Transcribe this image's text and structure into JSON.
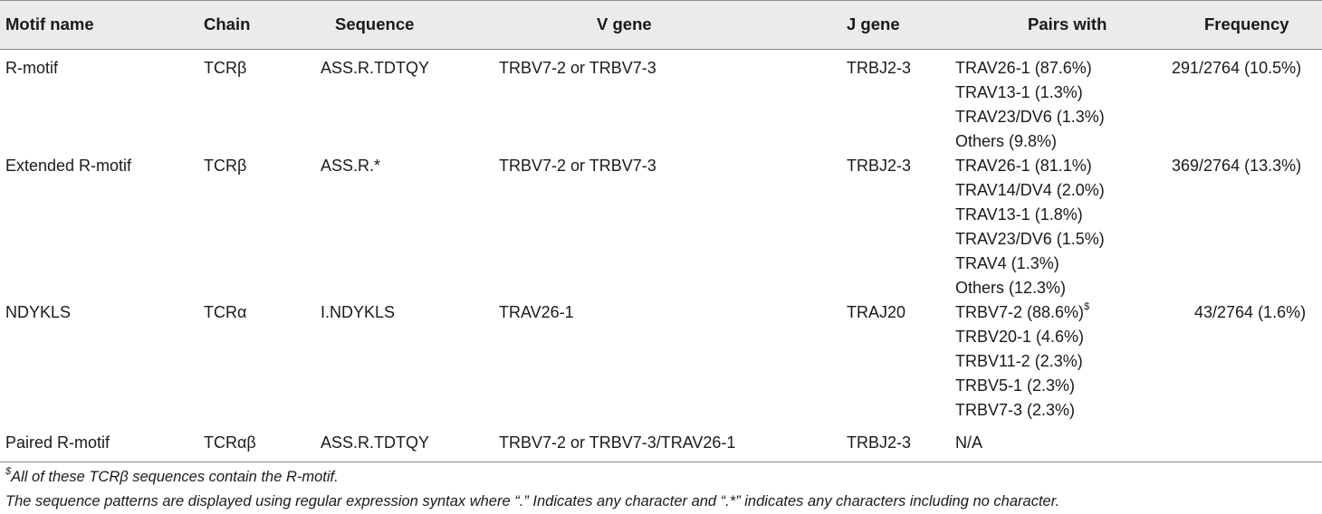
{
  "headers": {
    "motif": "Motif name",
    "chain": "Chain",
    "sequence": "Sequence",
    "vgene": "V gene",
    "jgene": "J gene",
    "pairs": "Pairs with",
    "freq": "Frequency"
  },
  "rows": [
    {
      "motif": "R-motif",
      "chain": "TCRβ",
      "sequence": "ASS.R.TDTQY",
      "vgene": "TRBV7-2 or TRBV7-3",
      "jgene": "TRBJ2-3",
      "pairs": [
        "TRAV26-1 (87.6%)",
        "TRAV13-1 (1.3%)",
        "TRAV23/DV6 (1.3%)",
        "Others (9.8%)"
      ],
      "freq": "291/2764 (10.5%)"
    },
    {
      "motif": "Extended R-motif",
      "chain": "TCRβ",
      "sequence": "ASS.R.*",
      "vgene": "TRBV7-2 or TRBV7-3",
      "jgene": "TRBJ2-3",
      "pairs": [
        "TRAV26-1 (81.1%)",
        "TRAV14/DV4 (2.0%)",
        "TRAV13-1 (1.8%)",
        "TRAV23/DV6 (1.5%)",
        "TRAV4 (1.3%)",
        "Others (12.3%)"
      ],
      "freq": "369/2764 (13.3%)"
    },
    {
      "motif": "NDYKLS",
      "chain": "TCRα",
      "sequence": "I.NDYKLS",
      "vgene": "TRAV26-1",
      "jgene": "TRAJ20",
      "pairs": [
        "TRBV7-2 (88.6%)",
        "TRBV20-1 (4.6%)",
        "TRBV11-2 (2.3%)",
        "TRBV5-1 (2.3%)",
        "TRBV7-3 (2.3%)"
      ],
      "pairs_sup": "$",
      "freq": "43/2764 (1.6%)"
    },
    {
      "motif": "Paired R-motif",
      "chain": "TCRαβ",
      "sequence": "ASS.R.TDTQY",
      "vgene": "TRBV7-2 or TRBV7-3/TRAV26-1",
      "jgene": "TRBJ2-3",
      "pairs": [
        "N/A"
      ],
      "freq": ""
    }
  ],
  "footnotes": {
    "sup": "$",
    "note1": "All of these TCRβ sequences contain the R-motif.",
    "note2": "The sequence patterns are displayed using regular expression syntax where “.” Indicates any character and “.*” indicates any characters including no character."
  }
}
